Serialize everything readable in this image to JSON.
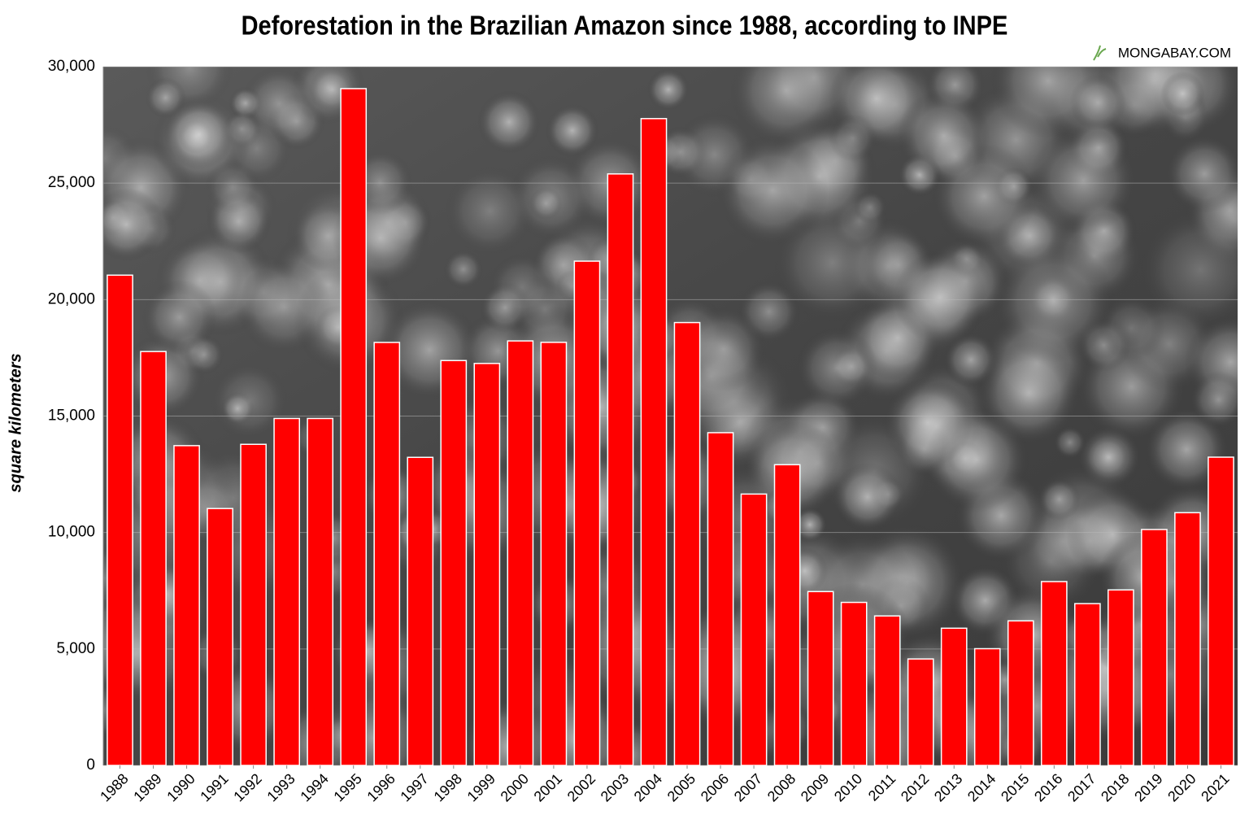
{
  "chart_data": {
    "type": "bar",
    "title": "Deforestation in the Brazilian Amazon since 1988, according to INPE",
    "source": "MONGABAY.COM",
    "y_label": "square kilometers",
    "categories": [
      "1988",
      "1989",
      "1990",
      "1991",
      "1992",
      "1993",
      "1994",
      "1995",
      "1996",
      "1997",
      "1998",
      "1999",
      "2000",
      "2001",
      "2002",
      "2003",
      "2004",
      "2005",
      "2006",
      "2007",
      "2008",
      "2009",
      "2010",
      "2011",
      "2012",
      "2013",
      "2014",
      "2015",
      "2016",
      "2017",
      "2018",
      "2019",
      "2020",
      "2021"
    ],
    "values": [
      21050,
      17770,
      13730,
      11030,
      13786,
      14896,
      14896,
      29059,
      18161,
      13227,
      17383,
      17259,
      18226,
      18165,
      21651,
      25396,
      27772,
      19014,
      14286,
      11651,
      12911,
      7464,
      7000,
      6418,
      4571,
      5891,
      5012,
      6207,
      7893,
      6947,
      7536,
      10129,
      10851,
      13235
    ],
    "color": "#ff0000",
    "ylim": [
      0,
      30000
    ],
    "yticks": [
      0,
      {
        "value": 5000,
        "label": "5,000"
      },
      {
        "value": 10000,
        "label": "10,000"
      },
      {
        "value": 15000,
        "label": "15,000"
      },
      {
        "value": 20000,
        "label": "20,000"
      },
      {
        "value": 25000,
        "label": "25,000"
      },
      {
        "value": 30000,
        "label": "30,000"
      }
    ],
    "grid": true
  }
}
